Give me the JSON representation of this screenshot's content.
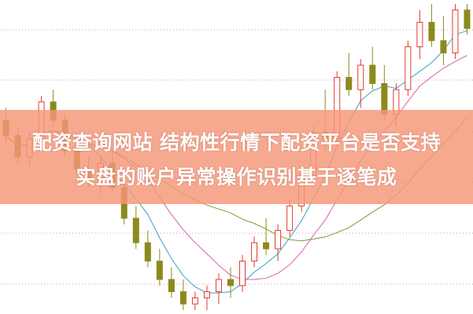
{
  "headline": {
    "line1": "配资查询网站  结构性行情下配资平台是否支持",
    "line2": "实盘的账户异常操作识别基于逐笔成"
  },
  "colors": {
    "up": "#e23a2e",
    "down": "#8c8a1c",
    "ma1": "#3aa0c0",
    "ma2": "#d860b0",
    "ma3": "#7a9a30",
    "grid": "#c8a0a0",
    "banner": "#f5967880"
  },
  "chart_data": {
    "type": "candlestick",
    "title": "",
    "grid": true,
    "candles": [
      [
        62,
        66,
        55,
        57
      ],
      [
        57,
        60,
        48,
        50
      ],
      [
        50,
        58,
        47,
        56
      ],
      [
        56,
        70,
        54,
        68
      ],
      [
        68,
        72,
        60,
        62
      ],
      [
        62,
        64,
        50,
        52
      ],
      [
        52,
        56,
        44,
        46
      ],
      [
        46,
        50,
        40,
        42
      ],
      [
        42,
        50,
        38,
        48
      ],
      [
        48,
        52,
        38,
        40
      ],
      [
        40,
        42,
        28,
        30
      ],
      [
        30,
        34,
        20,
        22
      ],
      [
        22,
        26,
        14,
        16
      ],
      [
        16,
        20,
        8,
        10
      ],
      [
        10,
        14,
        4,
        6
      ],
      [
        6,
        10,
        0,
        2
      ],
      [
        2,
        6,
        0,
        4
      ],
      [
        4,
        8,
        0,
        6
      ],
      [
        6,
        12,
        2,
        10
      ],
      [
        10,
        14,
        4,
        8
      ],
      [
        8,
        18,
        6,
        16
      ],
      [
        16,
        24,
        14,
        22
      ],
      [
        22,
        30,
        18,
        20
      ],
      [
        20,
        28,
        16,
        26
      ],
      [
        26,
        36,
        24,
        34
      ],
      [
        34,
        46,
        32,
        44
      ],
      [
        44,
        60,
        42,
        58
      ],
      [
        58,
        72,
        52,
        56
      ],
      [
        56,
        78,
        54,
        76
      ],
      [
        76,
        84,
        70,
        72
      ],
      [
        72,
        82,
        66,
        80
      ],
      [
        80,
        86,
        72,
        74
      ],
      [
        74,
        80,
        62,
        64
      ],
      [
        64,
        74,
        60,
        72
      ],
      [
        72,
        88,
        70,
        86
      ],
      [
        86,
        98,
        82,
        94
      ],
      [
        94,
        100,
        86,
        88
      ],
      [
        88,
        96,
        80,
        84
      ],
      [
        84,
        100,
        82,
        98
      ],
      [
        98,
        100,
        90,
        92
      ]
    ]
  }
}
